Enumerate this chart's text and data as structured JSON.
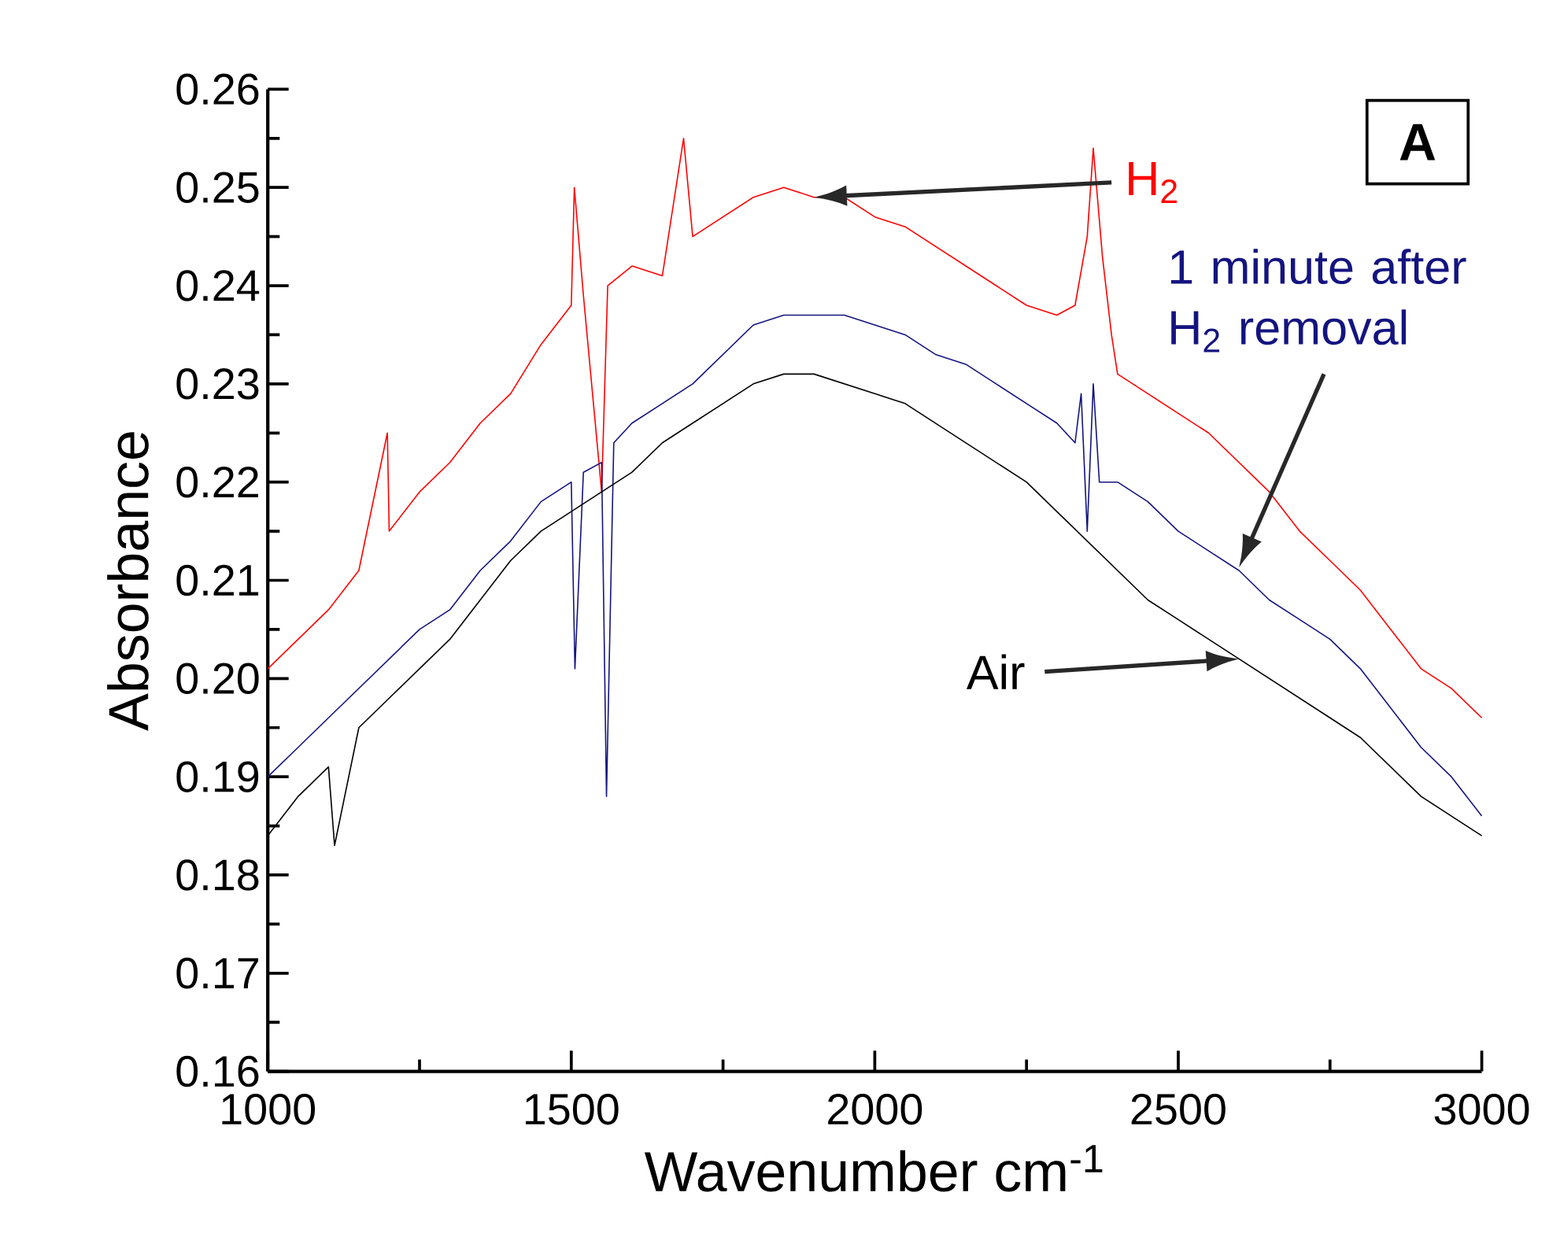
{
  "chart_data": {
    "type": "line",
    "xlabel": "Wavenumber cm$^{-1}$",
    "ylabel": "Absorbance",
    "xlim": [
      1000,
      3000
    ],
    "ylim": [
      0.16,
      0.26
    ],
    "xticks": [
      1000,
      1500,
      2000,
      2500,
      3000
    ],
    "yticks": [
      {
        "value": 0.16,
        "label": "0.16"
      },
      {
        "value": 0.17,
        "label": "0.17"
      },
      {
        "value": 0.18,
        "label": "0.18"
      },
      {
        "value": 0.19,
        "label": "0.19"
      },
      {
        "value": 0.2,
        "label": "0.20"
      },
      {
        "value": 0.21,
        "label": "0.21"
      },
      {
        "value": 0.22,
        "label": "0.22"
      },
      {
        "value": 0.23,
        "label": "0.23"
      },
      {
        "value": 0.24,
        "label": "0.24"
      },
      {
        "value": 0.25,
        "label": "0.25"
      },
      {
        "value": 0.26,
        "label": "0.26"
      }
    ],
    "marker": "none",
    "line_style": "solid",
    "annotations": [
      "A"
    ],
    "series": [
      {
        "name": "H$_{2}$",
        "color": "#ff0000",
        "x": [
          1000,
          1050,
          1100,
          1150,
          1197,
          1200,
          1250,
          1300,
          1350,
          1400,
          1450,
          1500,
          1505,
          1520,
          1550,
          1560,
          1600,
          1650,
          1685,
          1700,
          1750,
          1800,
          1850,
          1900,
          1950,
          2000,
          2050,
          2100,
          2150,
          2200,
          2250,
          2300,
          2330,
          2350,
          2360,
          2375,
          2390,
          2400,
          2450,
          2500,
          2550,
          2600,
          2650,
          2700,
          2750,
          2800,
          2850,
          2900,
          2950,
          3000
        ],
        "values": [
          0.201,
          0.204,
          0.207,
          0.211,
          0.225,
          0.215,
          0.219,
          0.222,
          0.226,
          0.229,
          0.234,
          0.238,
          0.25,
          0.239,
          0.219,
          0.24,
          0.242,
          0.241,
          0.255,
          0.245,
          0.247,
          0.249,
          0.25,
          0.249,
          0.249,
          0.247,
          0.246,
          0.244,
          0.242,
          0.24,
          0.238,
          0.237,
          0.238,
          0.245,
          0.254,
          0.243,
          0.235,
          0.231,
          0.229,
          0.227,
          0.225,
          0.222,
          0.219,
          0.215,
          0.212,
          0.209,
          0.205,
          0.201,
          0.199,
          0.196
        ]
      },
      {
        "name": "1 minute after H$_{2}$ removal",
        "color": "#141480",
        "x": [
          1000,
          1050,
          1100,
          1150,
          1200,
          1250,
          1300,
          1350,
          1400,
          1450,
          1500,
          1506,
          1520,
          1550,
          1558,
          1570,
          1600,
          1650,
          1700,
          1750,
          1800,
          1850,
          1900,
          1950,
          2000,
          2050,
          2100,
          2150,
          2200,
          2250,
          2300,
          2330,
          2340,
          2350,
          2360,
          2370,
          2400,
          2450,
          2500,
          2550,
          2600,
          2650,
          2700,
          2750,
          2800,
          2850,
          2900,
          2950,
          3000
        ],
        "values": [
          0.19,
          0.193,
          0.196,
          0.199,
          0.202,
          0.205,
          0.207,
          0.211,
          0.214,
          0.218,
          0.22,
          0.201,
          0.221,
          0.222,
          0.188,
          0.224,
          0.226,
          0.228,
          0.23,
          0.233,
          0.236,
          0.237,
          0.237,
          0.237,
          0.236,
          0.235,
          0.233,
          0.232,
          0.23,
          0.228,
          0.226,
          0.224,
          0.229,
          0.215,
          0.23,
          0.22,
          0.22,
          0.218,
          0.215,
          0.213,
          0.211,
          0.208,
          0.206,
          0.204,
          0.201,
          0.197,
          0.193,
          0.19,
          0.186
        ]
      },
      {
        "name": "Air",
        "color": "#000000",
        "x": [
          1000,
          1050,
          1100,
          1110,
          1150,
          1200,
          1250,
          1300,
          1350,
          1400,
          1450,
          1500,
          1550,
          1600,
          1650,
          1700,
          1750,
          1800,
          1850,
          1900,
          1950,
          2000,
          2050,
          2100,
          2150,
          2200,
          2250,
          2300,
          2350,
          2400,
          2450,
          2500,
          2550,
          2600,
          2650,
          2700,
          2750,
          2800,
          2850,
          2900,
          2950,
          3000
        ],
        "values": [
          0.184,
          0.188,
          0.191,
          0.183,
          0.195,
          0.198,
          0.201,
          0.204,
          0.208,
          0.212,
          0.215,
          0.217,
          0.219,
          0.221,
          0.224,
          0.226,
          0.228,
          0.23,
          0.231,
          0.231,
          0.23,
          0.229,
          0.228,
          0.226,
          0.224,
          0.222,
          0.22,
          0.217,
          0.214,
          0.211,
          0.208,
          0.206,
          0.204,
          0.202,
          0.2,
          0.198,
          0.196,
          0.194,
          0.191,
          0.188,
          0.186,
          0.184
        ]
      }
    ]
  }
}
